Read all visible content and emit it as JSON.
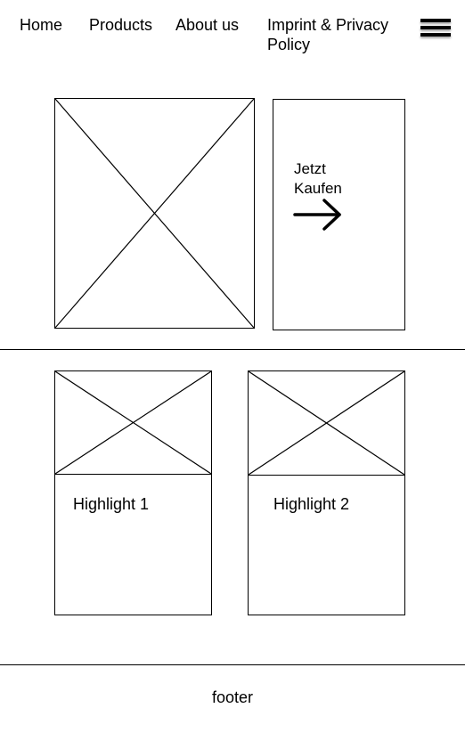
{
  "nav": {
    "items": [
      {
        "label": "Home"
      },
      {
        "label": "Products"
      },
      {
        "label": "About us"
      },
      {
        "label": "Imprint & Privacy Policy"
      }
    ],
    "menu_icon": "hamburger-menu-icon"
  },
  "hero": {
    "image_icon": "image-placeholder-icon",
    "cta": {
      "label": "Jetzt Kaufen",
      "icon": "arrow-right-icon"
    }
  },
  "highlights": [
    {
      "label": "Highlight 1",
      "image_icon": "image-placeholder-icon"
    },
    {
      "label": "Highlight 2",
      "image_icon": "image-placeholder-icon"
    }
  ],
  "footer": {
    "label": "footer"
  },
  "colors": {
    "stroke": "#000000",
    "background": "#ffffff"
  }
}
